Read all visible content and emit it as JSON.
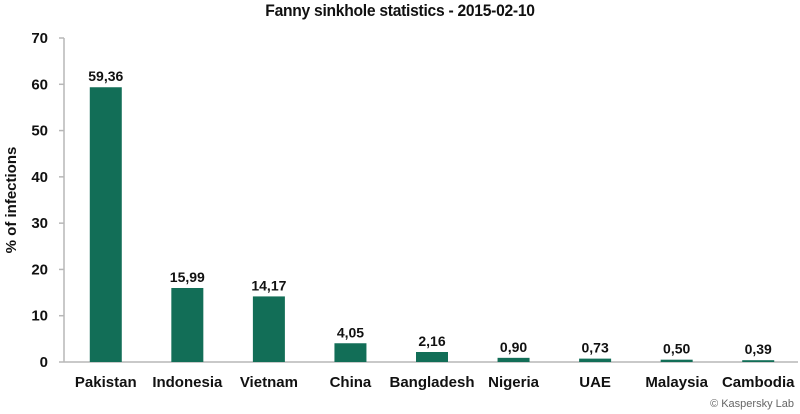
{
  "chart_data": {
    "type": "bar",
    "title": "Fanny sinkhole statistics - 2015-02-10",
    "xlabel": "",
    "ylabel": "% of infections",
    "ylim": [
      0,
      70
    ],
    "yticks": [
      "0",
      "10",
      "20",
      "30",
      "40",
      "50",
      "60",
      "70"
    ],
    "categories": [
      "Pakistan",
      "Indonesia",
      "Vietnam",
      "China",
      "Bangladesh",
      "Nigeria",
      "UAE",
      "Malaysia",
      "Cambodia"
    ],
    "values": [
      59.36,
      15.99,
      14.17,
      4.05,
      2.16,
      0.9,
      0.73,
      0.5,
      0.39
    ],
    "value_labels": [
      "59,36",
      "15,99",
      "14,17",
      "4,05",
      "2,16",
      "0,90",
      "0,73",
      "0,50",
      "0,39"
    ],
    "grid": false,
    "bar_color": "#126e57",
    "axis_color": "#b7b7b7"
  },
  "credit": "© Kaspersky Lab"
}
